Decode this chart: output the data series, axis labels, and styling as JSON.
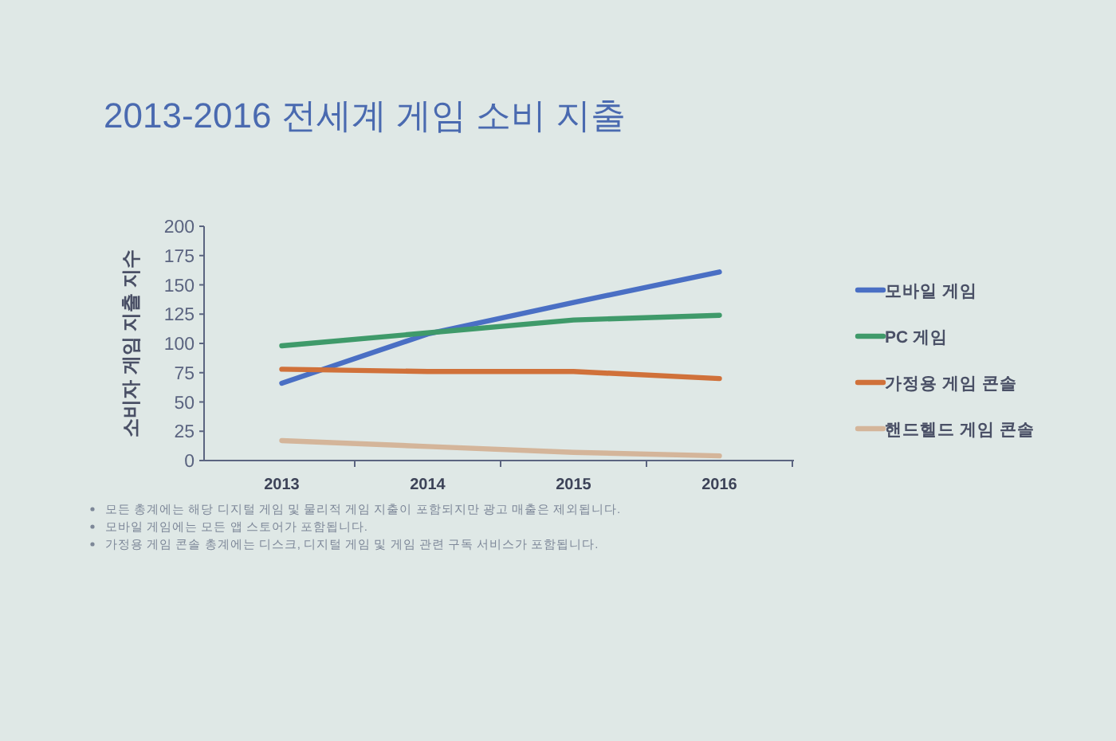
{
  "chart_data": {
    "type": "line",
    "title": "2013-2016 전세계 게임 소비 지출",
    "ylabel": "소비자 게임 지출 지수",
    "categories": [
      "2013",
      "2014",
      "2015",
      "2016"
    ],
    "series": [
      {
        "name": "모바일 게임",
        "color": "#4a6fc4",
        "values": [
          66,
          108,
          135,
          161
        ]
      },
      {
        "name": "PC 게임",
        "color": "#3f9a6a",
        "values": [
          98,
          109,
          120,
          124
        ]
      },
      {
        "name": "가정용 게임 콘솔",
        "color": "#d0713a",
        "values": [
          78,
          76,
          76,
          70
        ]
      },
      {
        "name": "핸드헬드 게임 콘솔",
        "color": "#d4b59a",
        "values": [
          17,
          12,
          7,
          4
        ]
      }
    ],
    "ylim": [
      0,
      200
    ],
    "yticks": [
      0,
      25,
      50,
      75,
      100,
      125,
      150,
      175,
      200
    ],
    "legend": "right",
    "line_style": "solid",
    "annotations": [
      "모든 총계에는 해당 디지털 게임 및 물리적 게임 지출이 포함되지만 광고 매출은 제외됩니다.",
      "모바일 게임에는 모든 앱 스토어가 포함됩니다.",
      "가정용 게임 콘솔 총계에는 디스크, 디지털 게임 및 게임 관련 구독 서비스가 포함됩니다."
    ]
  }
}
